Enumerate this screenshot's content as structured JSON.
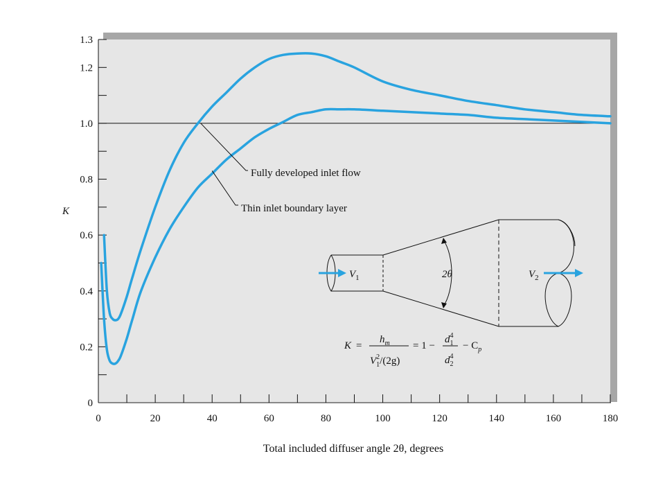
{
  "chart_data": {
    "type": "line",
    "xlabel": "Total included diffuser angle 2θ, degrees",
    "ylabel": "K",
    "xlim": [
      0,
      180
    ],
    "ylim": [
      0,
      1.3
    ],
    "x_ticks": [
      0,
      20,
      40,
      60,
      80,
      100,
      120,
      140,
      160,
      180
    ],
    "y_ticks": [
      {
        "value": 0,
        "label": "0"
      },
      {
        "value": 0.2,
        "label": "0.2"
      },
      {
        "value": 0.4,
        "label": "0.4"
      },
      {
        "value": 0.6,
        "label": "0.6"
      },
      {
        "value": 0.8,
        "label": "0.8"
      },
      {
        "value": 1.0,
        "label": "1.0"
      },
      {
        "value": 1.2,
        "label": "1.2"
      },
      {
        "value": 1.3,
        "label": "1.3"
      }
    ],
    "reference_line": {
      "y": 1.0
    },
    "grid": false,
    "series": [
      {
        "name": "Fully developed inlet flow",
        "x": [
          2,
          3,
          4,
          5,
          6,
          7,
          8,
          10,
          12,
          15,
          20,
          25,
          30,
          35,
          40,
          45,
          50,
          55,
          60,
          65,
          70,
          75,
          80,
          85,
          90,
          100,
          110,
          120,
          130,
          140,
          150,
          160,
          170,
          180
        ],
        "y": [
          0.6,
          0.4,
          0.32,
          0.3,
          0.295,
          0.3,
          0.32,
          0.38,
          0.45,
          0.55,
          0.7,
          0.83,
          0.93,
          1.0,
          1.06,
          1.11,
          1.16,
          1.2,
          1.23,
          1.245,
          1.25,
          1.25,
          1.24,
          1.22,
          1.2,
          1.15,
          1.12,
          1.1,
          1.08,
          1.065,
          1.05,
          1.04,
          1.03,
          1.025
        ]
      },
      {
        "name": "Thin inlet boundary layer",
        "x": [
          1,
          2,
          3,
          4,
          5,
          6,
          7,
          8,
          10,
          12,
          15,
          20,
          25,
          30,
          35,
          40,
          45,
          50,
          55,
          60,
          65,
          70,
          75,
          80,
          85,
          90,
          100,
          110,
          120,
          130,
          140,
          150,
          160,
          170,
          180
        ],
        "y": [
          0.5,
          0.3,
          0.19,
          0.15,
          0.14,
          0.14,
          0.15,
          0.17,
          0.23,
          0.3,
          0.4,
          0.52,
          0.62,
          0.7,
          0.77,
          0.82,
          0.87,
          0.91,
          0.95,
          0.98,
          1.005,
          1.03,
          1.04,
          1.05,
          1.05,
          1.05,
          1.045,
          1.04,
          1.035,
          1.03,
          1.02,
          1.015,
          1.01,
          1.005,
          1.0
        ]
      }
    ],
    "series_color": "#29a3df",
    "annotations": [
      {
        "text": "Fully developed inlet flow",
        "points_to": {
          "x": 36,
          "y": 1.0
        }
      },
      {
        "text": "Thin inlet boundary layer",
        "points_to": {
          "x": 40,
          "y": 0.83
        }
      }
    ],
    "inset": {
      "labels": {
        "v1": "V",
        "v1_sub": "1",
        "v2": "V",
        "v2_sub": "2",
        "angle": "2θ"
      },
      "formula": {
        "lhs": "K",
        "eq": "=",
        "num_main": "h",
        "num_sub": "m",
        "den_main": "V",
        "den_sup": "2",
        "den_sub": "1",
        "den_rest": "/(2g)",
        "mid": "= 1 −",
        "d_main": "d",
        "d_top_sup": "4",
        "d_top_sub": "1",
        "d_bot_sup": "4",
        "d_bot_sub": "2",
        "tail": "− C",
        "tail_sub": "p"
      }
    }
  }
}
